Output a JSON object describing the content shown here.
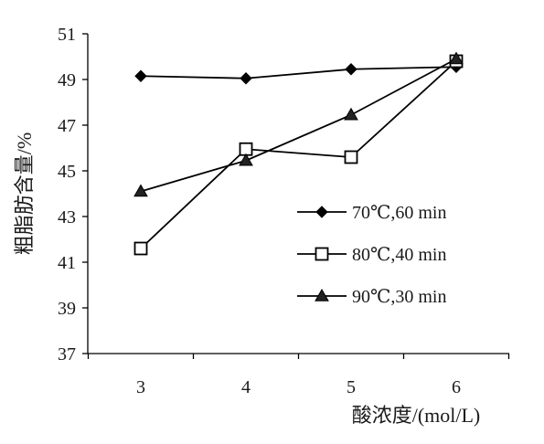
{
  "chart_data": {
    "type": "line",
    "title": "",
    "xlabel": "酸浓度/(mol/L)",
    "ylabel": "粗脂肪含量/%",
    "categories": [
      "3",
      "4",
      "5",
      "6"
    ],
    "x": [
      3,
      4,
      5,
      6
    ],
    "ylim": [
      37,
      51
    ],
    "yticks": [
      37,
      39,
      41,
      43,
      45,
      47,
      49,
      51
    ],
    "grid": false,
    "legend_position": "right",
    "series": [
      {
        "name": "70℃,60 min",
        "marker": "filled-diamond",
        "color": "#000000",
        "values": [
          49.15,
          49.05,
          49.45,
          49.55
        ]
      },
      {
        "name": "80℃,40 min",
        "marker": "open-square",
        "color": "#000000",
        "values": [
          41.6,
          45.95,
          45.6,
          49.8
        ]
      },
      {
        "name": "90℃,30 min",
        "marker": "filled-triangle",
        "color": "#000000",
        "values": [
          44.1,
          45.45,
          47.45,
          49.9
        ]
      }
    ]
  }
}
